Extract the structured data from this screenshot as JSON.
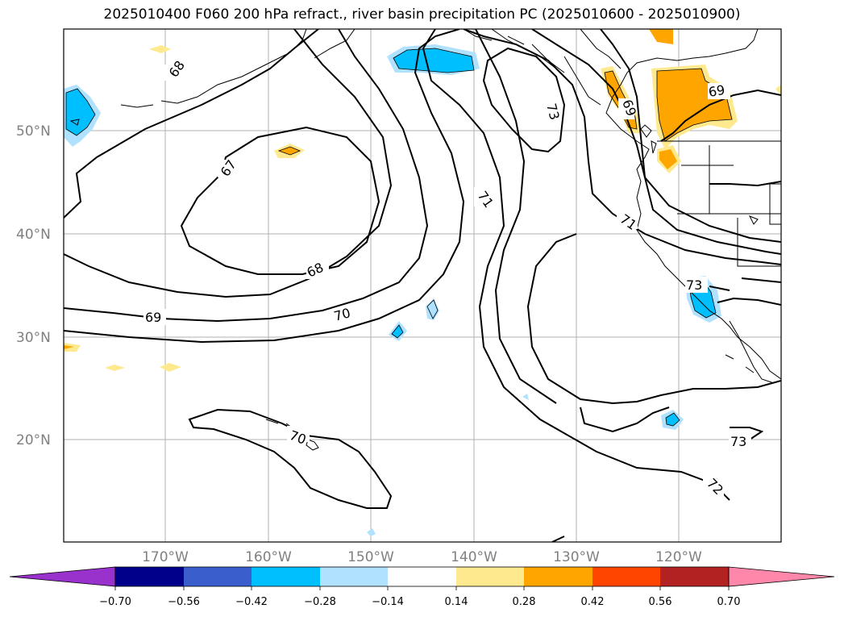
{
  "title": "2025010400 F060 200 hPa refract., river basin precipitation PC (2025010600 - 2025010900)",
  "map": {
    "lat_labels": [
      "50°N",
      "40°N",
      "30°N",
      "20°N"
    ],
    "lon_labels": [
      "170°W",
      "160°W",
      "150°W",
      "140°W",
      "130°W",
      "120°W"
    ],
    "contour_labels": [
      "68",
      "67",
      "68",
      "69",
      "70",
      "71",
      "73",
      "71",
      "73",
      "73",
      "72",
      "70",
      "69",
      "69"
    ]
  },
  "colorbar": {
    "tick_labels": [
      "−0.70",
      "−0.56",
      "−0.42",
      "−0.28",
      "−0.14",
      "0.14",
      "0.28",
      "0.42",
      "0.56",
      "0.70"
    ],
    "colors": [
      "#9932cc",
      "#00008b",
      "#3a5fcd",
      "#00bfff",
      "#b0e2ff",
      "#ffffff",
      "#fee98f",
      "#ffa500",
      "#ff4500",
      "#b22222",
      "#ff88aa",
      "#ff88aa"
    ]
  }
}
